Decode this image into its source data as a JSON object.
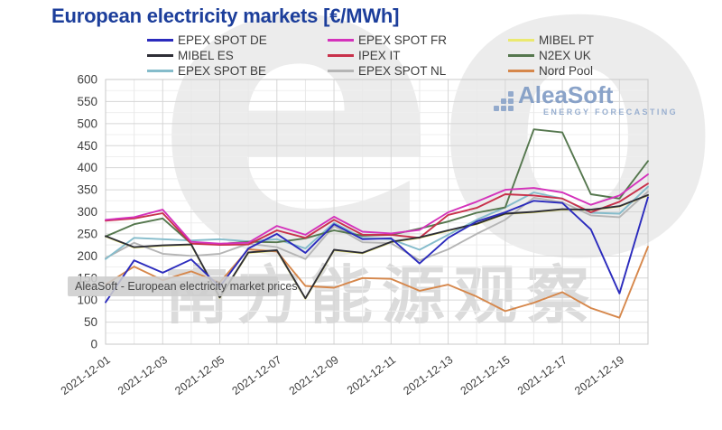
{
  "title": "European electricity markets [€/MWh]",
  "logo": {
    "name": "AleaSoft",
    "subtitle": "ENERGY FORECASTING"
  },
  "watermarks": {
    "band_text": "AleaSoft - European electricity market prices",
    "big_text": "eo",
    "cjk_text": "南方能源观察"
  },
  "chart_data": {
    "type": "line",
    "title": "European electricity markets [€/MWh]",
    "ylabel": "",
    "xlabel": "",
    "unit": "€/MWh",
    "ylim": [
      0,
      600
    ],
    "y_major_step": 50,
    "y_minor_step": 25,
    "grid": true,
    "legend_position": "top",
    "x": [
      "2021-12-01",
      "2021-12-02",
      "2021-12-03",
      "2021-12-04",
      "2021-12-05",
      "2021-12-06",
      "2021-12-07",
      "2021-12-08",
      "2021-12-09",
      "2021-12-10",
      "2021-12-11",
      "2021-12-12",
      "2021-12-13",
      "2021-12-14",
      "2021-12-15",
      "2021-12-16",
      "2021-12-17",
      "2021-12-18",
      "2021-12-19",
      "2021-12-20"
    ],
    "x_tick_labels": [
      "2021-12-01",
      "2021-12-03",
      "2021-12-05",
      "2021-12-07",
      "2021-12-09",
      "2021-12-11",
      "2021-12-13",
      "2021-12-15",
      "2021-12-17",
      "2021-12-19"
    ],
    "series": [
      {
        "name": "MIBEL PT",
        "color": "#ebe96f",
        "values": [
          244,
          219,
          223,
          225,
          105,
          207,
          212,
          103,
          213,
          206,
          231,
          241,
          257,
          272,
          295,
          299,
          305,
          304,
          312,
          337
        ]
      },
      {
        "name": "EPEX SPOT NL",
        "color": "#b5b5b5",
        "values": [
          195,
          230,
          205,
          200,
          205,
          228,
          220,
          193,
          268,
          231,
          229,
          190,
          215,
          250,
          282,
          332,
          322,
          292,
          288,
          346
        ]
      },
      {
        "name": "EPEX SPOT BE",
        "color": "#85bccb",
        "values": [
          193,
          241,
          238,
          235,
          238,
          233,
          238,
          217,
          275,
          241,
          238,
          214,
          248,
          282,
          310,
          344,
          330,
          298,
          296,
          357
        ]
      },
      {
        "name": "N2EX UK",
        "color": "#55774e",
        "values": [
          244,
          272,
          285,
          228,
          227,
          232,
          231,
          240,
          258,
          246,
          248,
          262,
          278,
          298,
          310,
          487,
          480,
          340,
          330,
          415
        ]
      },
      {
        "name": "Nord Pool",
        "color": "#d6874b",
        "values": [
          135,
          176,
          145,
          165,
          140,
          215,
          210,
          132,
          128,
          150,
          148,
          121,
          135,
          108,
          75,
          94,
          118,
          82,
          60,
          221
        ]
      },
      {
        "name": "IPEX IT",
        "color": "#c8314b",
        "values": [
          280,
          285,
          297,
          228,
          225,
          226,
          258,
          241,
          282,
          248,
          248,
          241,
          293,
          309,
          340,
          337,
          330,
          299,
          323,
          364
        ]
      },
      {
        "name": "EPEX SPOT FR",
        "color": "#d washing32bb",
        "values": [
          282,
          288,
          305,
          232,
          228,
          230,
          268,
          248,
          289,
          255,
          251,
          259,
          299,
          323,
          350,
          354,
          344,
          316,
          337,
          385
        ]
      },
      {
        "name": "MIBEL ES",
        "color": "#2e2e36",
        "values": [
          245,
          220,
          224,
          226,
          106,
          208,
          213,
          104,
          214,
          207,
          232,
          242,
          258,
          273,
          296,
          300,
          306,
          305,
          313,
          338
        ]
      },
      {
        "name": "EPEX SPOT DE",
        "color": "#2b2bbd",
        "values": [
          95,
          190,
          162,
          192,
          130,
          217,
          250,
          207,
          272,
          238,
          240,
          183,
          241,
          278,
          299,
          325,
          320,
          260,
          115,
          333
        ]
      }
    ],
    "legend_columns": [
      [
        "EPEX SPOT DE",
        "MIBEL ES",
        "EPEX SPOT BE"
      ],
      [
        "EPEX SPOT FR",
        "IPEX IT",
        "EPEX SPOT NL"
      ],
      [
        "MIBEL PT",
        "N2EX UK",
        "Nord Pool"
      ]
    ]
  }
}
